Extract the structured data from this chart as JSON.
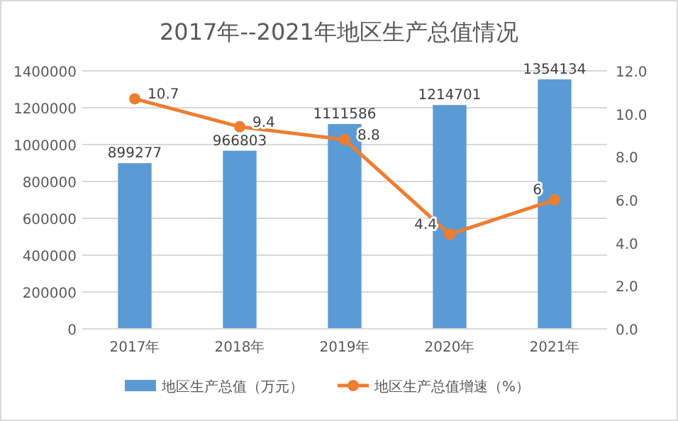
{
  "chart_data": {
    "type": "bar",
    "title": "2017年--2021年地区生产总值情况",
    "categories": [
      "2017年",
      "2018年",
      "2019年",
      "2020年",
      "2021年"
    ],
    "series": [
      {
        "name": "地区生产总值（万元）",
        "color": "#5b9bd5",
        "values": [
          899277,
          966803,
          1111586,
          1214701,
          1354134
        ]
      },
      {
        "name": "地区生产总值增速（%）",
        "type": "line",
        "axis": "y2",
        "color": "#ed7d31",
        "marker": "circle",
        "values": [
          10.7,
          9.4,
          8.8,
          4.4,
          6
        ]
      }
    ],
    "ylim": [
      0,
      1400000
    ],
    "yticks": [
      0,
      200000,
      400000,
      600000,
      800000,
      1000000,
      1200000,
      1400000
    ],
    "y2lim": [
      0,
      12
    ],
    "y2ticks": [
      {
        "value": 0,
        "label": "0.0"
      },
      {
        "value": 2,
        "label": "2.0"
      },
      {
        "value": 4,
        "label": "4.0"
      },
      {
        "value": 6,
        "label": "6.0"
      },
      {
        "value": 8,
        "label": "8.0"
      },
      {
        "value": 10,
        "label": "10.0"
      },
      {
        "value": 12,
        "label": "12.0"
      }
    ],
    "grid": "y",
    "legend": "bottom",
    "data_labels": true
  }
}
